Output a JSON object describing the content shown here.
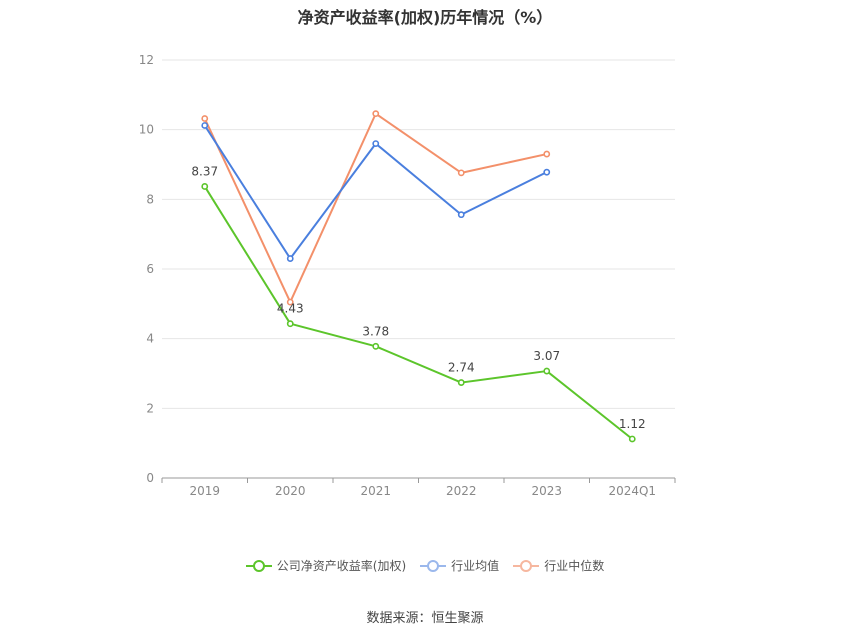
{
  "chart_data": {
    "type": "line",
    "title": "净资产收益率(加权)历年情况（%）",
    "categories": [
      "2019",
      "2020",
      "2021",
      "2022",
      "2023",
      "2024Q1"
    ],
    "y_ticks": [
      "0",
      "2",
      "4",
      "6",
      "8",
      "10",
      "12"
    ],
    "ylim": [
      0,
      12
    ],
    "grid": true,
    "legend_position": "bottom",
    "series": [
      {
        "name": "公司净资产收益率(加权)",
        "color": "#5cc52b",
        "values": [
          8.37,
          4.43,
          3.78,
          2.74,
          3.07,
          1.12
        ],
        "labels": [
          "8.37",
          "4.43",
          "3.78",
          "2.74",
          "3.07",
          "1.12"
        ]
      },
      {
        "name": "行业均值",
        "color": "#4a7fde",
        "values": [
          10.12,
          6.3,
          9.6,
          7.56,
          8.78,
          null
        ]
      },
      {
        "name": "行业中位数",
        "color": "#f3906a",
        "values": [
          10.32,
          5.05,
          10.46,
          8.76,
          9.3,
          null
        ]
      }
    ]
  },
  "source_text": "数据来源：恒生聚源"
}
